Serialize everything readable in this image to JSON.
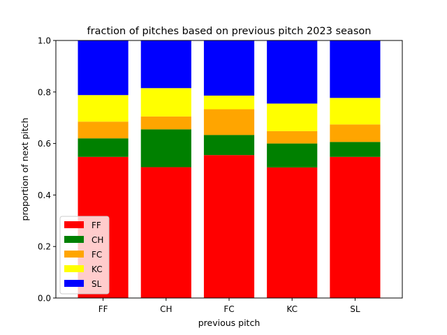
{
  "chart_data": {
    "type": "bar",
    "stacked": true,
    "title": "fraction of pitches based on previous pitch 2023 season",
    "xlabel": "previous pitch",
    "ylabel": "proportion of next pitch",
    "ylim": [
      0,
      1.0
    ],
    "yticks": [
      "0.0",
      "0.2",
      "0.4",
      "0.6",
      "0.8",
      "1.0"
    ],
    "grid": false,
    "legend_position": "lower-left",
    "categories": [
      "FF",
      "CH",
      "FC",
      "KC",
      "SL"
    ],
    "series": [
      {
        "name": "FF",
        "color": "#ff0000",
        "values": [
          0.548,
          0.508,
          0.555,
          0.507,
          0.548
        ]
      },
      {
        "name": "CH",
        "color": "#008000",
        "values": [
          0.072,
          0.147,
          0.078,
          0.093,
          0.058
        ]
      },
      {
        "name": "FC",
        "color": "#ffa500",
        "values": [
          0.065,
          0.05,
          0.1,
          0.048,
          0.068
        ]
      },
      {
        "name": "KC",
        "color": "#ffff00",
        "values": [
          0.103,
          0.11,
          0.053,
          0.107,
          0.103
        ]
      },
      {
        "name": "SL",
        "color": "#0000ff",
        "values": [
          0.212,
          0.185,
          0.214,
          0.245,
          0.223
        ]
      }
    ]
  }
}
